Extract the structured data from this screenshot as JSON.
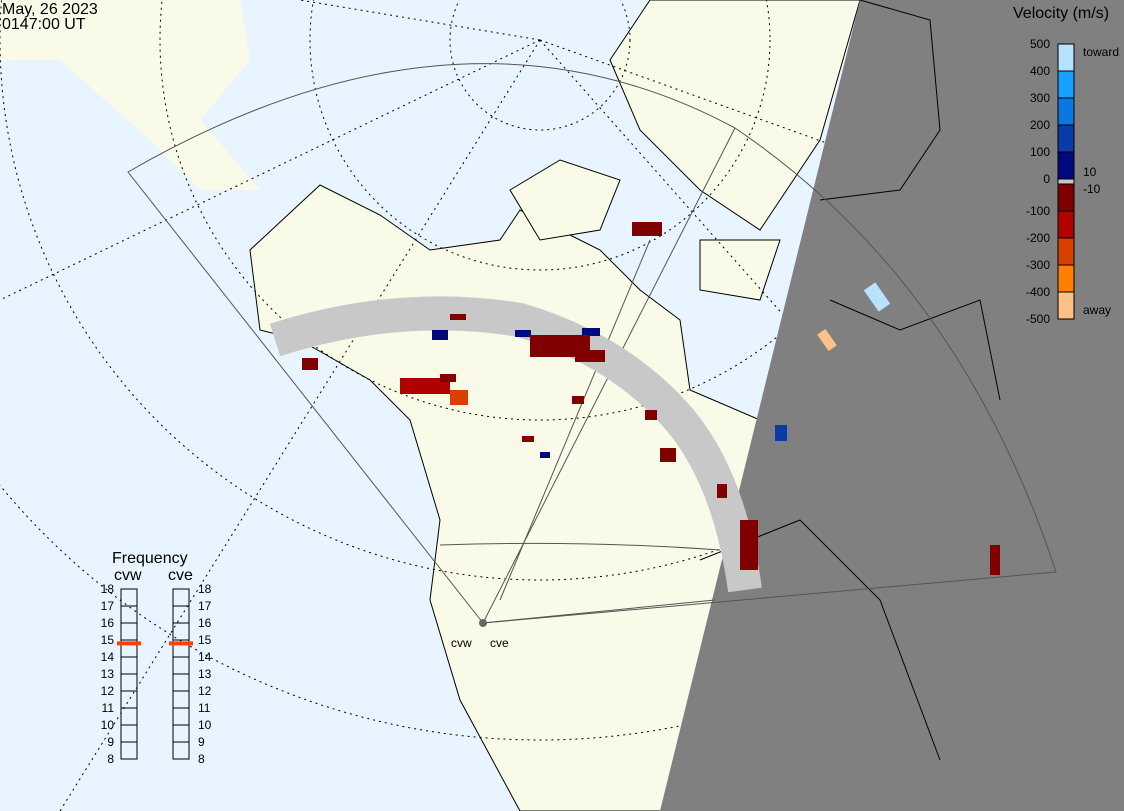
{
  "header": {
    "date": "May, 26 2023",
    "time": "0147:00 UT"
  },
  "colorbar": {
    "title": "Velocity (m/s)",
    "ticks": [
      "500",
      "400",
      "300",
      "200",
      "100",
      "0",
      "-100",
      "-200",
      "-300",
      "-400",
      "-500"
    ],
    "toward_label": "toward",
    "away_label": "away",
    "pos_threshold": "10",
    "neg_threshold": "-10",
    "colors": [
      "#b8e2ff",
      "#16a0ff",
      "#0a78e0",
      "#0a3ca8",
      "#000a80",
      "#c8c8c8",
      "#800000",
      "#b00000",
      "#d84000",
      "#ff8000",
      "#ffc088"
    ]
  },
  "frequency": {
    "title": "Frequency",
    "ticks": [
      "18",
      "17",
      "16",
      "15",
      "14",
      "13",
      "12",
      "11",
      "10",
      "9",
      "8"
    ],
    "radars": [
      {
        "name": "cvw",
        "value_mhz": 14.8
      },
      {
        "name": "cve",
        "value_mhz": 14.8
      }
    ],
    "marker_color": "#ff4000"
  },
  "radar_labels": [
    "cvw",
    "cve"
  ],
  "map_colors": {
    "ocean": "#e8f4ff",
    "land": "#fafae8",
    "night": "#808080",
    "scatter_ground": "#c8c8c8"
  }
}
